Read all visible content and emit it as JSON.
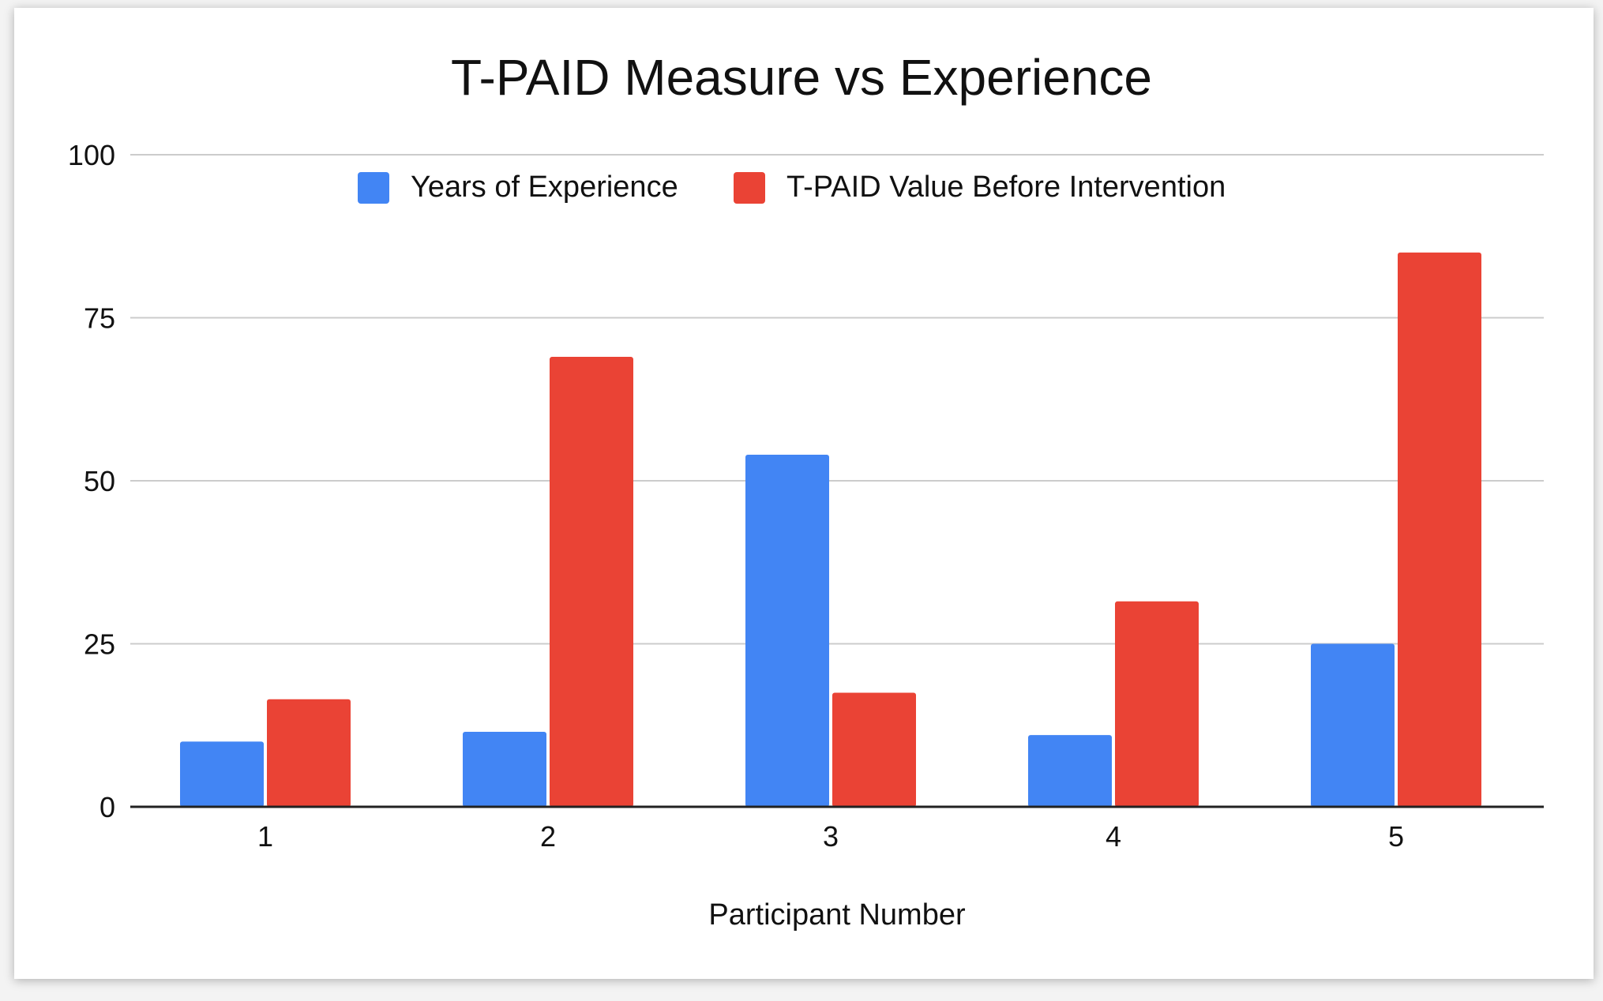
{
  "chart_data": {
    "type": "bar",
    "title": "T-PAID Measure vs Experience",
    "xlabel": "Participant Number",
    "ylabel": "",
    "categories": [
      "1",
      "2",
      "3",
      "4",
      "5"
    ],
    "ylim": [
      0,
      100
    ],
    "yticks": [
      "0",
      "25",
      "50",
      "75",
      "100"
    ],
    "grid": true,
    "legend_position": "top-center",
    "series": [
      {
        "name": "Years of Experience",
        "color": "#4285f4",
        "values": [
          10,
          11.5,
          54,
          11,
          25
        ]
      },
      {
        "name": "T-PAID Value Before Intervention",
        "color": "#ea4335",
        "values": [
          16.5,
          69,
          17.5,
          31.5,
          85
        ]
      }
    ]
  }
}
